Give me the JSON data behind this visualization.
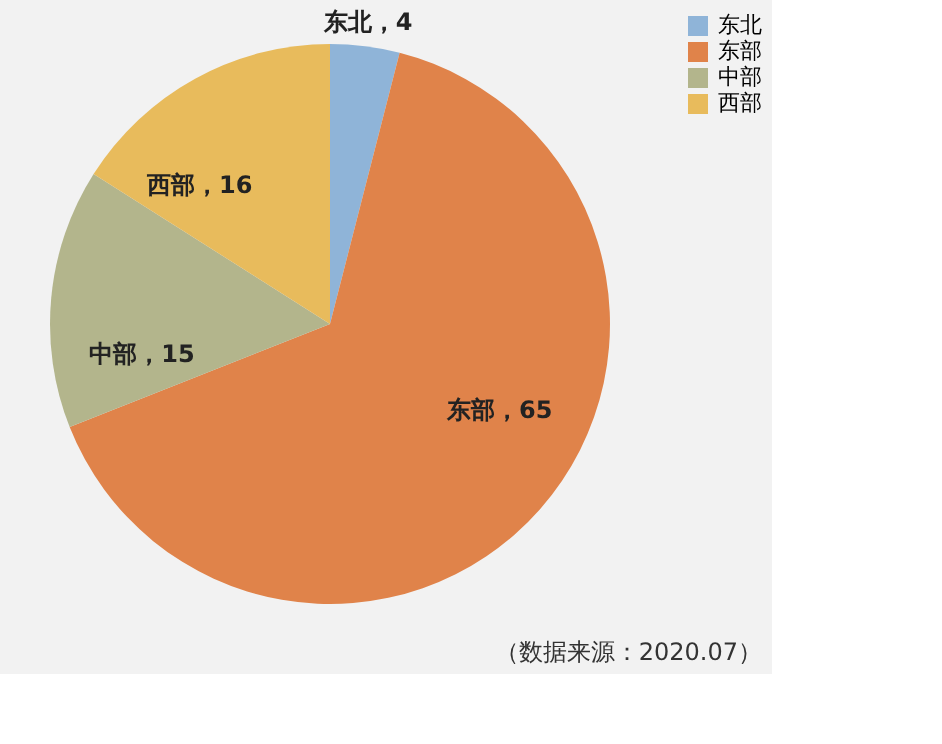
{
  "chart_data": {
    "type": "pie",
    "categories": [
      "东北",
      "东部",
      "中部",
      "西部"
    ],
    "values": [
      4,
      65,
      15,
      16
    ],
    "colors": [
      "#8fb4d8",
      "#e0834a",
      "#b3b58c",
      "#e8bb5c"
    ],
    "value_labels": [
      "东北，4",
      "东部，65",
      "中部，15",
      "西部，16"
    ],
    "legend": "right",
    "annotations": [
      "（数据来源：2020.07）"
    ]
  }
}
